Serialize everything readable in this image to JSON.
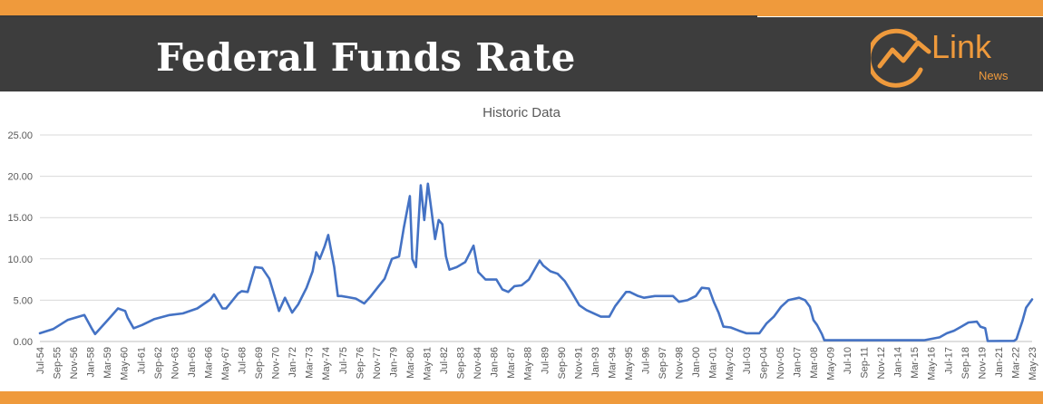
{
  "header": {
    "title": "Federal Funds Rate",
    "logo_text": "Link",
    "logo_subtext": "News",
    "brand_color": "#ef9a3c",
    "header_bg": "#3d3d3d"
  },
  "chart_data": {
    "type": "line",
    "title": "Historic Data",
    "xlabel": "",
    "ylabel": "",
    "ylim": [
      0,
      25
    ],
    "yticks": [
      "0.00",
      "5.00",
      "10.00",
      "15.00",
      "20.00",
      "25.00"
    ],
    "xlim": [
      "1954-07",
      "2023-05"
    ],
    "xticks": [
      "Jul-54",
      "Sep-55",
      "Nov-56",
      "Jan-58",
      "Mar-59",
      "May-60",
      "Jul-61",
      "Sep-62",
      "Nov-63",
      "Jan-65",
      "Mar-66",
      "May-67",
      "Jul-68",
      "Sep-69",
      "Nov-70",
      "Jan-72",
      "Mar-73",
      "May-74",
      "Jul-75",
      "Sep-76",
      "Nov-77",
      "Jan-79",
      "Mar-80",
      "May-81",
      "Jul-82",
      "Sep-83",
      "Nov-84",
      "Jan-86",
      "Mar-87",
      "May-88",
      "Jul-89",
      "Sep-90",
      "Nov-91",
      "Jan-93",
      "Mar-94",
      "May-95",
      "Jul-96",
      "Sep-97",
      "Nov-98",
      "Jan-00",
      "Mar-01",
      "May-02",
      "Jul-03",
      "Sep-04",
      "Nov-05",
      "Jan-07",
      "Mar-08",
      "May-09",
      "Jul-10",
      "Sep-11",
      "Nov-12",
      "Jan-14",
      "Mar-15",
      "May-16",
      "Jul-17",
      "Sep-18",
      "Nov-19",
      "Jan-21",
      "Mar-22",
      "May-23"
    ],
    "grid": true,
    "legend": "none",
    "line_color": "#4472c4",
    "series": [
      {
        "x": [
          "1954-07",
          "1955-06",
          "1956-06",
          "1957-08",
          "1958-02",
          "1958-05",
          "1959-06",
          "1959-12",
          "1960-06",
          "1960-08",
          "1961-01",
          "1961-08",
          "1962-06",
          "1963-07",
          "1964-06",
          "1965-06",
          "1966-05",
          "1966-08",
          "1967-03",
          "1967-06",
          "1968-04",
          "1968-07",
          "1968-12",
          "1969-06",
          "1969-12",
          "1970-06",
          "1971-02",
          "1971-07",
          "1972-01",
          "1972-06",
          "1973-01",
          "1973-06",
          "1973-09",
          "1973-12",
          "1974-04",
          "1974-07",
          "1974-12",
          "1975-03",
          "1975-06",
          "1976-06",
          "1977-01",
          "1977-06",
          "1978-01",
          "1978-06",
          "1978-12",
          "1979-06",
          "1979-10",
          "1980-03",
          "1980-05",
          "1980-08",
          "1980-12",
          "1981-03",
          "1981-06",
          "1981-09",
          "1981-12",
          "1982-03",
          "1982-06",
          "1982-09",
          "1982-12",
          "1983-06",
          "1984-01",
          "1984-08",
          "1984-12",
          "1985-06",
          "1986-03",
          "1986-08",
          "1987-01",
          "1987-06",
          "1987-12",
          "1988-06",
          "1989-03",
          "1989-06",
          "1989-12",
          "1990-06",
          "1990-12",
          "1991-06",
          "1991-12",
          "1992-06",
          "1993-06",
          "1994-01",
          "1994-06",
          "1995-03",
          "1995-06",
          "1996-01",
          "1996-06",
          "1997-03",
          "1998-06",
          "1998-11",
          "1999-06",
          "2000-01",
          "2000-06",
          "2000-12",
          "2001-04",
          "2001-08",
          "2001-12",
          "2002-06",
          "2003-01",
          "2003-07",
          "2004-06",
          "2004-12",
          "2005-06",
          "2005-12",
          "2006-06",
          "2007-03",
          "2007-08",
          "2007-12",
          "2008-03",
          "2008-06",
          "2008-10",
          "2008-12",
          "2015-11",
          "2016-12",
          "2017-06",
          "2017-12",
          "2018-06",
          "2018-12",
          "2019-07",
          "2019-10",
          "2020-02",
          "2020-04",
          "2022-02",
          "2022-04",
          "2022-06",
          "2022-09",
          "2022-12",
          "2023-05"
        ],
        "values": [
          1.0,
          1.5,
          2.6,
          3.2,
          1.6,
          0.9,
          3.0,
          4.0,
          3.7,
          2.9,
          1.6,
          2.0,
          2.7,
          3.2,
          3.4,
          4.0,
          5.1,
          5.7,
          4.0,
          4.0,
          5.8,
          6.1,
          6.0,
          9.0,
          8.9,
          7.6,
          3.7,
          5.3,
          3.5,
          4.5,
          6.5,
          8.5,
          10.8,
          10.0,
          11.5,
          12.9,
          9.0,
          5.5,
          5.5,
          5.2,
          4.6,
          5.4,
          6.7,
          7.6,
          10.0,
          10.3,
          13.8,
          17.6,
          10.0,
          9.0,
          18.9,
          14.7,
          19.1,
          15.8,
          12.4,
          14.7,
          14.2,
          10.3,
          8.7,
          9.0,
          9.6,
          11.6,
          8.4,
          7.5,
          7.5,
          6.3,
          6.0,
          6.7,
          6.8,
          7.5,
          9.8,
          9.2,
          8.5,
          8.2,
          7.3,
          5.9,
          4.4,
          3.8,
          3.0,
          3.0,
          4.3,
          6.0,
          6.0,
          5.5,
          5.3,
          5.5,
          5.5,
          4.8,
          5.0,
          5.5,
          6.5,
          6.4,
          4.8,
          3.5,
          1.8,
          1.7,
          1.3,
          1.0,
          1.0,
          2.2,
          3.0,
          4.2,
          5.0,
          5.3,
          5.0,
          4.2,
          2.6,
          2.0,
          0.9,
          0.15,
          0.15,
          0.5,
          1.0,
          1.3,
          1.8,
          2.3,
          2.4,
          1.8,
          1.6,
          0.05,
          0.08,
          0.3,
          1.2,
          2.5,
          4.1,
          5.1
        ]
      }
    ]
  }
}
